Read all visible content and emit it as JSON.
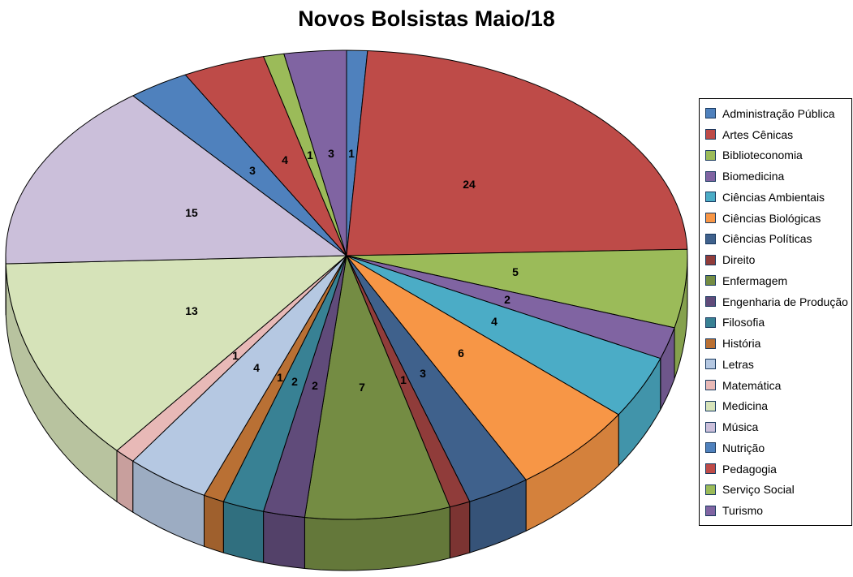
{
  "chart_data": {
    "type": "pie",
    "is_3d": true,
    "title": "Novos Bolsistas Maio/18",
    "start_angle_deg": 0,
    "direction": "clockwise",
    "legend_position": "right",
    "data_labels": "value",
    "total": 102,
    "categories": [
      "Administração Pública",
      "Artes Cênicas",
      "Biblioteconomia",
      "Biomedicina",
      "Ciências Ambientais",
      "Ciências Biológicas",
      "Ciências Políticas",
      "Direito",
      "Enfermagem",
      "Engenharia de Produção",
      "Filosofia",
      "História",
      "Letras",
      "Matemática",
      "Medicina",
      "Música",
      "Nutrição",
      "Pedagogia",
      "Serviço Social",
      "Turismo"
    ],
    "values": [
      1,
      24,
      5,
      2,
      4,
      6,
      3,
      1,
      7,
      2,
      2,
      1,
      4,
      1,
      13,
      15,
      3,
      4,
      1,
      3
    ],
    "colors": [
      "#4F81BD",
      "#BE4B48",
      "#9BBB59",
      "#8064A2",
      "#4BACC6",
      "#F79646",
      "#3F618C",
      "#903C3A",
      "#748C43",
      "#604B7A",
      "#388194",
      "#B97034",
      "#B5C8E2",
      "#E8B9B7",
      "#D6E3B9",
      "#CBBFDA",
      "#4F81BD",
      "#BE4B48",
      "#9BBB59",
      "#8064A2"
    ],
    "outline_color": "#000000",
    "swatch_border_color": "#17375D",
    "background_color": "#FFFFFF"
  }
}
